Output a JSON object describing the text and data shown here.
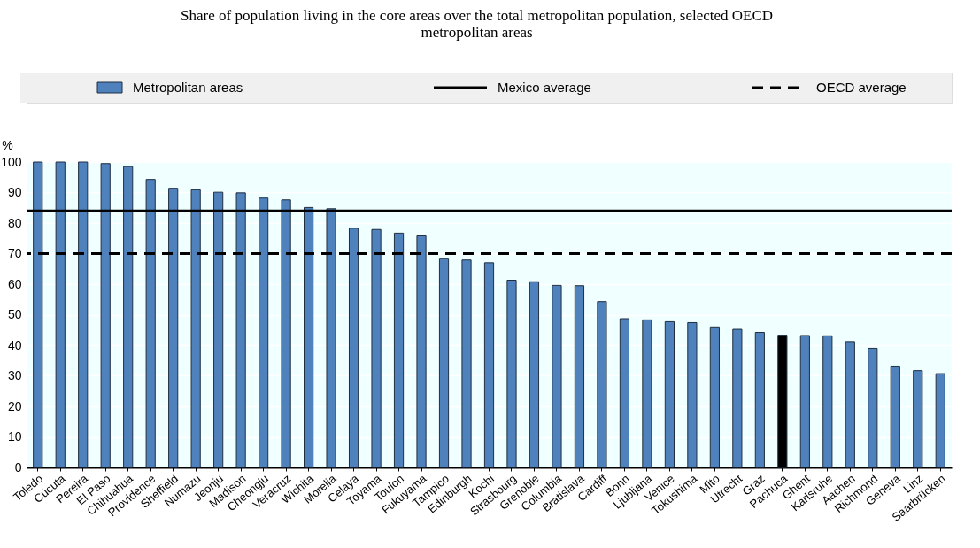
{
  "chart_data": {
    "type": "bar",
    "title": "Share of population living in the core areas over the total metropolitan population, selected OECD metropolitan areas",
    "ylabel": "%",
    "categories": [
      "Toledo",
      "Cúcuta",
      "Pereira",
      "El Paso",
      "Chihuahua",
      "Providence",
      "Sheffield",
      "Numazu",
      "Jeonju",
      "Madison",
      "Cheongju",
      "Veracruz",
      "Wichita",
      "Morelia",
      "Celaya",
      "Toyama",
      "Toulon",
      "Fukuyama",
      "Tampico",
      "Edinburgh",
      "Kochi",
      "Strasbourg",
      "Grenoble",
      "Columbia",
      "Bratislava",
      "Cardiff",
      "Bonn",
      "Ljubljana",
      "Venice",
      "Tokushima",
      "Mito",
      "Utrecht",
      "Graz",
      "Pachuca",
      "Ghent",
      "Karlsruhe",
      "Aachen",
      "Richmond",
      "Geneva",
      "Linz",
      "Saarbrücken"
    ],
    "series": [
      {
        "name": "Metropolitan areas",
        "color": "#4f81bd",
        "colors": [
          "#4f81bd",
          "#4f81bd",
          "#4f81bd",
          "#4f81bd",
          "#4f81bd",
          "#4f81bd",
          "#4f81bd",
          "#4f81bd",
          "#4f81bd",
          "#4f81bd",
          "#4f81bd",
          "#4f81bd",
          "#4f81bd",
          "#4f81bd",
          "#4f81bd",
          "#4f81bd",
          "#4f81bd",
          "#4f81bd",
          "#4f81bd",
          "#4f81bd",
          "#4f81bd",
          "#4f81bd",
          "#4f81bd",
          "#4f81bd",
          "#4f81bd",
          "#4f81bd",
          "#4f81bd",
          "#4f81bd",
          "#4f81bd",
          "#4f81bd",
          "#4f81bd",
          "#4f81bd",
          "#4f81bd",
          "#000000",
          "#4f81bd",
          "#4f81bd",
          "#4f81bd",
          "#4f81bd",
          "#4f81bd",
          "#4f81bd",
          "#4f81bd"
        ],
        "values": [
          100,
          100,
          100,
          99.5,
          98.5,
          94.3,
          91.4,
          90.9,
          90.1,
          89.9,
          88.2,
          87.6,
          85.1,
          84.7,
          78.3,
          77.9,
          76.7,
          75.8,
          68.5,
          67.9,
          67.0,
          61.3,
          60.8,
          59.6,
          59.5,
          54.3,
          48.7,
          48.3,
          47.7,
          47.4,
          46.0,
          45.2,
          44.2,
          43.3,
          43.2,
          43.1,
          41.2,
          39.0,
          33.2,
          31.7,
          30.7
        ]
      }
    ],
    "ref_lines": [
      {
        "axis": "y",
        "value": 84,
        "label": "Mexico average",
        "color": "#000000",
        "line_style": "solid"
      },
      {
        "axis": "y",
        "value": 70,
        "label": "OECD average",
        "color": "#000000",
        "line_style": "dashed"
      }
    ],
    "ylim": [
      0,
      100
    ],
    "yticks": [
      0,
      10,
      20,
      30,
      40,
      50,
      60,
      70,
      80,
      90,
      100
    ],
    "grid": "y",
    "legend": "top"
  }
}
